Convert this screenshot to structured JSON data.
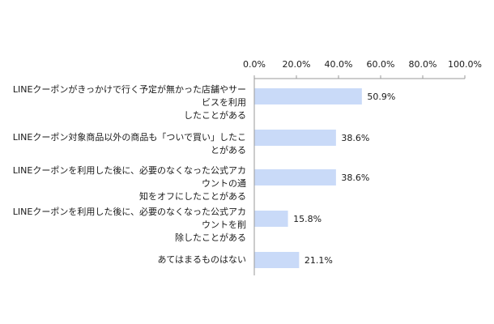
{
  "chart_data": {
    "type": "bar",
    "orientation": "horizontal",
    "categories": [
      "LINEクーポンがきっかけで行く予定が無かった店舗やサービスを利用\nしたことがある",
      "LINEクーポン対象商品以外の商品も「ついで買い」したことがある",
      "LINEクーポンを利用した後に、必要のなくなった公式アカウントの通\n知をオフにしたことがある",
      "LINEクーポンを利用した後に、必要のなくなった公式アカウントを削\n除したことがある",
      "あてはまるものはない"
    ],
    "values": [
      50.9,
      38.6,
      38.6,
      15.8,
      21.1
    ],
    "value_labels": [
      "50.9%",
      "38.6%",
      "38.6%",
      "15.8%",
      "21.1%"
    ],
    "xlim": [
      0,
      100
    ],
    "x_ticks": [
      0,
      20,
      40,
      60,
      80,
      100
    ],
    "x_tick_labels": [
      "0.0%",
      "20.0%",
      "40.0%",
      "60.0%",
      "80.0%",
      "100.0%"
    ],
    "x_axis_position": "top",
    "grid": false,
    "bar_color": "#c9daf8",
    "axis_color": "#9a9a9a"
  }
}
